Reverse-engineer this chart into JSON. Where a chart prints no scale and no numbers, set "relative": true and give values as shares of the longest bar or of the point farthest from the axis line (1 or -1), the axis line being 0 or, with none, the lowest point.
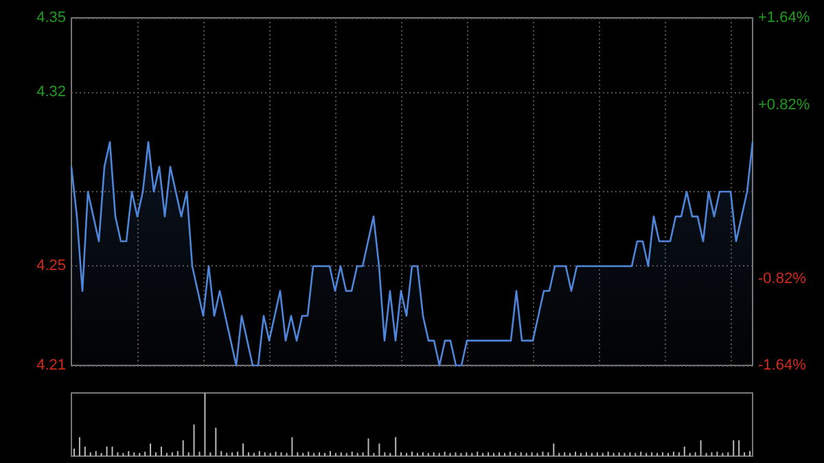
{
  "chart_data": [
    {
      "type": "area",
      "color": "#4f86d9",
      "marker": "none",
      "grid": true,
      "tick_labels": "y",
      "categories": [
        null,
        null,
        null,
        null,
        null,
        null,
        null,
        null,
        null,
        null,
        null,
        null,
        null,
        null,
        null,
        null,
        null,
        null,
        null,
        null,
        null,
        null,
        null,
        null,
        null,
        null,
        null,
        null,
        null,
        null,
        null,
        null,
        null,
        null,
        null,
        null,
        null,
        null,
        null,
        null,
        null,
        null,
        null,
        null,
        null,
        null,
        null,
        null,
        null,
        null,
        null,
        null,
        null,
        null,
        null,
        null,
        null,
        null,
        null,
        null,
        null,
        null,
        null,
        null,
        null,
        null,
        null,
        null,
        null,
        null,
        null,
        null,
        null,
        null,
        null,
        null,
        null,
        null,
        null,
        null,
        null,
        null,
        null,
        null,
        null,
        null,
        null,
        null,
        null,
        null,
        null,
        null,
        null,
        null,
        null,
        null,
        null,
        null,
        null,
        null,
        null,
        null,
        null,
        null,
        null,
        null,
        null,
        null,
        null,
        null,
        null,
        null,
        null,
        null,
        null,
        null,
        null,
        null,
        null,
        null,
        null,
        null,
        null,
        null,
        null
      ],
      "values": [
        4.29,
        4.27,
        4.24,
        4.28,
        4.27,
        4.26,
        4.29,
        4.3,
        4.27,
        4.26,
        4.26,
        4.28,
        4.27,
        4.28,
        4.3,
        4.28,
        4.29,
        4.27,
        4.29,
        4.28,
        4.27,
        4.28,
        4.25,
        4.24,
        4.23,
        4.25,
        4.23,
        4.24,
        4.23,
        4.22,
        4.21,
        4.23,
        4.22,
        4.21,
        4.21,
        4.23,
        4.22,
        4.23,
        4.24,
        4.22,
        4.23,
        4.22,
        4.23,
        4.23,
        4.25,
        4.25,
        4.25,
        4.25,
        4.24,
        4.25,
        4.24,
        4.24,
        4.25,
        4.25,
        4.26,
        4.27,
        4.25,
        4.22,
        4.24,
        4.22,
        4.24,
        4.23,
        4.25,
        4.25,
        4.23,
        4.22,
        4.22,
        4.21,
        4.22,
        4.22,
        4.21,
        4.21,
        4.22,
        4.22,
        4.22,
        4.22,
        4.22,
        4.22,
        4.22,
        4.22,
        4.22,
        4.24,
        4.22,
        4.22,
        4.22,
        4.23,
        4.24,
        4.24,
        4.25,
        4.25,
        4.25,
        4.24,
        4.25,
        4.25,
        4.25,
        4.25,
        4.25,
        4.25,
        4.25,
        4.25,
        4.25,
        4.25,
        4.25,
        4.26,
        4.26,
        4.25,
        4.27,
        4.26,
        4.26,
        4.26,
        4.27,
        4.27,
        4.28,
        4.27,
        4.27,
        4.26,
        4.28,
        4.27,
        4.28,
        4.28,
        4.28,
        4.26,
        4.27,
        4.28,
        4.3
      ],
      "ylim": [
        4.21,
        4.35
      ],
      "yticks": [
        4.21,
        4.25,
        {
          "value": 4.28,
          "label": null
        },
        4.32,
        4.35
      ],
      "y2lim": [
        -1.64,
        1.64
      ],
      "y2ticks": [
        {
          "value": -1.64,
          "label": "-1.64%"
        },
        {
          "value": -0.82,
          "label": "-0.82%"
        },
        {
          "value": 0,
          "label": null
        },
        {
          "value": 0.82,
          "label": "+0.82%"
        },
        {
          "value": 1.64,
          "label": "+1.64%"
        }
      ]
    },
    {
      "type": "bar",
      "relative": true,
      "color": "#bbbbbb",
      "tick_labels": false,
      "categories": [
        null,
        null,
        null,
        null,
        null,
        null,
        null,
        null,
        null,
        null,
        null,
        null,
        null,
        null,
        null,
        null,
        null,
        null,
        null,
        null,
        null,
        null,
        null,
        null,
        null,
        null,
        null,
        null,
        null,
        null,
        null,
        null,
        null,
        null,
        null,
        null,
        null,
        null,
        null,
        null,
        null,
        null,
        null,
        null,
        null,
        null,
        null,
        null,
        null,
        null,
        null,
        null,
        null,
        null,
        null,
        null,
        null,
        null,
        null,
        null,
        null,
        null,
        null,
        null,
        null,
        null,
        null,
        null,
        null,
        null,
        null,
        null,
        null,
        null,
        null,
        null,
        null,
        null,
        null,
        null,
        null,
        null,
        null,
        null,
        null,
        null,
        null,
        null,
        null,
        null,
        null,
        null,
        null,
        null,
        null,
        null,
        null,
        null,
        null,
        null,
        null,
        null,
        null,
        null,
        null,
        null,
        null,
        null,
        null,
        null,
        null,
        null,
        null,
        null,
        null,
        null,
        null,
        null,
        null,
        null,
        null,
        null,
        null,
        null,
        null
      ],
      "values": [
        0.12,
        0.3,
        0.15,
        0.06,
        0.08,
        0.05,
        0.15,
        0.15,
        0.06,
        0.05,
        0.08,
        0.06,
        0.05,
        0.07,
        0.2,
        0.06,
        0.15,
        0.05,
        0.06,
        0.08,
        0.25,
        0.06,
        0.5,
        0.07,
        1,
        0.06,
        0.45,
        0.08,
        0.05,
        0.06,
        0.07,
        0.2,
        0.06,
        0.05,
        0.08,
        0.06,
        0.05,
        0.07,
        0.06,
        0.05,
        0.3,
        0.06,
        0.05,
        0.07,
        0.05,
        0.06,
        0.05,
        0.08,
        0.05,
        0.06,
        0.05,
        0.07,
        0.05,
        0.06,
        0.28,
        0.05,
        0.2,
        0.06,
        0.05,
        0.3,
        0.06,
        0.05,
        0.07,
        0.05,
        0.06,
        0.05,
        0.06,
        0.05,
        0.07,
        0.05,
        0.06,
        0.05,
        0.06,
        0.05,
        0.07,
        0.05,
        0.06,
        0.05,
        0.06,
        0.05,
        0.07,
        0.05,
        0.06,
        0.05,
        0.06,
        0.05,
        0.07,
        0.06,
        0.2,
        0.05,
        0.06,
        0.05,
        0.07,
        0.05,
        0.06,
        0.05,
        0.06,
        0.05,
        0.07,
        0.05,
        0.06,
        0.05,
        0.06,
        0.05,
        0.07,
        0.05,
        0.06,
        0.05,
        0.06,
        0.05,
        0.07,
        0.06,
        0.15,
        0.05,
        0.06,
        0.25,
        0.05,
        0.06,
        0.07,
        0.05,
        0.06,
        0.25,
        0.25,
        0.06,
        0.08
      ]
    }
  ]
}
